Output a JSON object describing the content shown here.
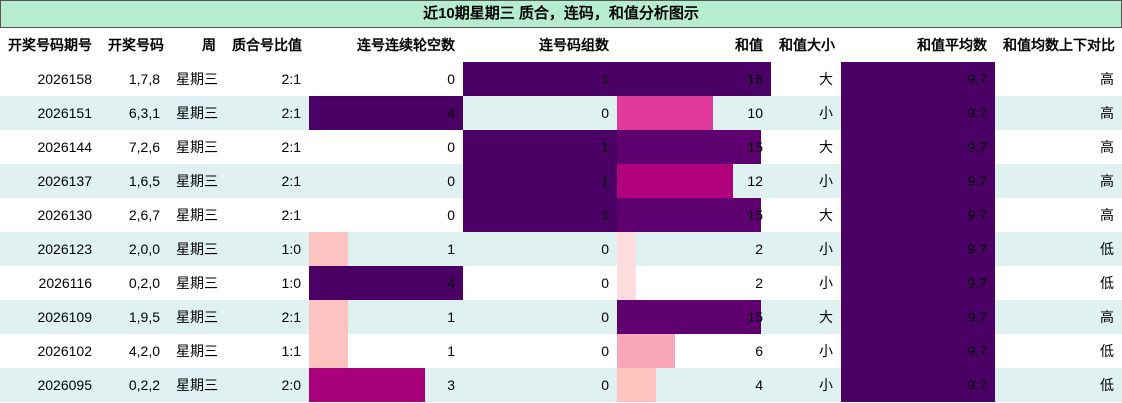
{
  "table": {
    "title": "近10期星期三 质合，连码，和值分析图示",
    "columns": [
      "开奖号码期号",
      "开奖号码",
      "周",
      "质合号比值",
      "连号连续轮空数",
      "连号码组数",
      "和值",
      "和值大小",
      "和值平均数",
      "和值均数上下对比"
    ],
    "rows": [
      [
        "2026158",
        "1,7,8",
        "星期三",
        "2:1",
        0,
        1,
        16,
        "大",
        9.7,
        "高"
      ],
      [
        "2026151",
        "6,3,1",
        "星期三",
        "2:1",
        4,
        0,
        10,
        "小",
        9.7,
        "高"
      ],
      [
        "2026144",
        "7,2,6",
        "星期三",
        "2:1",
        0,
        1,
        15,
        "大",
        9.7,
        "高"
      ],
      [
        "2026137",
        "1,6,5",
        "星期三",
        "2:1",
        0,
        1,
        12,
        "小",
        9.7,
        "高"
      ],
      [
        "2026130",
        "2,6,7",
        "星期三",
        "2:1",
        0,
        1,
        15,
        "大",
        9.7,
        "高"
      ],
      [
        "2026123",
        "2,0,0",
        "星期三",
        "1:0",
        1,
        0,
        2,
        "小",
        9.7,
        "低"
      ],
      [
        "2026116",
        "0,2,0",
        "星期三",
        "1:0",
        4,
        0,
        2,
        "小",
        9.7,
        "低"
      ],
      [
        "2026109",
        "1,9,5",
        "星期三",
        "2:1",
        1,
        0,
        15,
        "大",
        9.7,
        "高"
      ],
      [
        "2026102",
        "4,2,0",
        "星期三",
        "1:1",
        1,
        0,
        6,
        "小",
        9.7,
        "低"
      ],
      [
        "2026095",
        "0,2,2",
        "星期三",
        "2:0",
        3,
        0,
        4,
        "小",
        9.7,
        "低"
      ]
    ],
    "bar_colors": [
      [
        null,
        "#4b0066",
        "#4b0066",
        "#4b0066"
      ],
      [
        "#4b0066",
        null,
        "#df3a9c",
        "#4b0066"
      ],
      [
        null,
        "#4b0066",
        "#5e0070",
        "#4b0066"
      ],
      [
        null,
        "#4b0066",
        "#b0007c",
        "#4b0066"
      ],
      [
        null,
        "#4b0066",
        "#5e0070",
        "#4b0066"
      ],
      [
        "#fcc3c0",
        null,
        "#fddcde",
        "#4b0066"
      ],
      [
        "#4b0066",
        null,
        "#fddcde",
        "#4b0066"
      ],
      [
        "#fcc3c0",
        null,
        "#5e0070",
        "#4b0066"
      ],
      [
        "#fcc3c0",
        null,
        "#f9a5ba",
        "#4b0066"
      ],
      [
        "#a8007a",
        null,
        "#fdc4c0",
        "#4b0066"
      ]
    ]
  }
}
